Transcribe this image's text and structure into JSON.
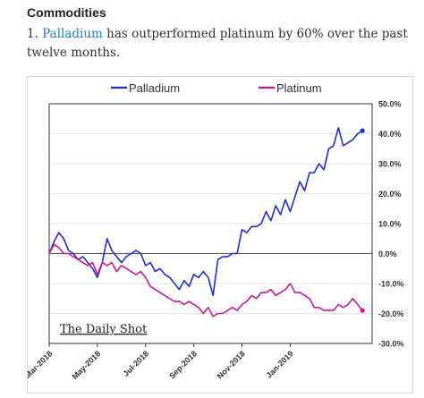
{
  "header": {
    "section_title": "Commodities",
    "caption_number": "1.",
    "caption_link": "Palladium",
    "caption_rest": "has outperformed platinum by 60% over the past twelve months."
  },
  "watermark": "The Daily Shot",
  "colors": {
    "palladium": "#1f2fd6",
    "platinum": "#cc1a96",
    "grid": "#e6e6e6",
    "link": "#2a7bd6"
  },
  "chart_data": {
    "type": "line",
    "ylim": [
      -30,
      50
    ],
    "y_ticks": [
      "50.0%",
      "40.0%",
      "30.0%",
      "20.0%",
      "10.0%",
      "0.0%",
      "-10.0%",
      "-20.0%",
      "-30.0%"
    ],
    "x_tick_labels": [
      "Mar-2018",
      "May-2018",
      "Jul-2018",
      "Sep-2018",
      "Nov-2018",
      "Jan-2019"
    ],
    "legend": [
      "Palladium",
      "Platinum"
    ],
    "legend_position": "top",
    "grid": true,
    "x_unit": "months since Mar-2018",
    "series": [
      {
        "name": "Palladium",
        "values": [
          [
            0,
            0
          ],
          [
            0.2,
            4
          ],
          [
            0.4,
            7
          ],
          [
            0.6,
            5
          ],
          [
            0.8,
            1
          ],
          [
            1.0,
            0
          ],
          [
            1.2,
            -2
          ],
          [
            1.4,
            -1
          ],
          [
            1.6,
            -3
          ],
          [
            1.8,
            -5
          ],
          [
            2.0,
            -8
          ],
          [
            2.2,
            -3
          ],
          [
            2.4,
            5
          ],
          [
            2.6,
            1
          ],
          [
            2.8,
            -1
          ],
          [
            3.0,
            -3
          ],
          [
            3.2,
            -1
          ],
          [
            3.4,
            0
          ],
          [
            3.6,
            1
          ],
          [
            3.8,
            0
          ],
          [
            4.0,
            -4
          ],
          [
            4.2,
            -3
          ],
          [
            4.4,
            -6
          ],
          [
            4.6,
            -5
          ],
          [
            4.8,
            -7
          ],
          [
            5.0,
            -8
          ],
          [
            5.2,
            -10
          ],
          [
            5.4,
            -12
          ],
          [
            5.6,
            -9
          ],
          [
            5.8,
            -11
          ],
          [
            6.0,
            -7
          ],
          [
            6.2,
            -8
          ],
          [
            6.4,
            -6
          ],
          [
            6.6,
            -8
          ],
          [
            6.8,
            -14
          ],
          [
            7.0,
            -2
          ],
          [
            7.2,
            -1
          ],
          [
            7.4,
            -1
          ],
          [
            7.6,
            0
          ],
          [
            7.8,
            0
          ],
          [
            8.0,
            8
          ],
          [
            8.2,
            7
          ],
          [
            8.4,
            9
          ],
          [
            8.6,
            9
          ],
          [
            8.8,
            10
          ],
          [
            9.0,
            14
          ],
          [
            9.2,
            11
          ],
          [
            9.4,
            16
          ],
          [
            9.6,
            13
          ],
          [
            9.8,
            18
          ],
          [
            10.0,
            14
          ],
          [
            10.2,
            19
          ],
          [
            10.4,
            24
          ],
          [
            10.6,
            21
          ],
          [
            10.8,
            27
          ],
          [
            11.0,
            27
          ],
          [
            11.2,
            30
          ],
          [
            11.4,
            28
          ],
          [
            11.6,
            35
          ],
          [
            11.8,
            36
          ],
          [
            12.0,
            42
          ],
          [
            12.2,
            36
          ],
          [
            12.4,
            37
          ],
          [
            12.6,
            38
          ],
          [
            12.8,
            40
          ],
          [
            13.0,
            41
          ]
        ]
      },
      {
        "name": "Platinum",
        "values": [
          [
            0,
            0
          ],
          [
            0.2,
            3
          ],
          [
            0.4,
            2
          ],
          [
            0.6,
            0
          ],
          [
            0.8,
            0
          ],
          [
            1.0,
            -1
          ],
          [
            1.2,
            -2
          ],
          [
            1.4,
            -3
          ],
          [
            1.6,
            -4
          ],
          [
            1.8,
            -3
          ],
          [
            2.0,
            -7
          ],
          [
            2.2,
            -3
          ],
          [
            2.4,
            -4
          ],
          [
            2.6,
            -3
          ],
          [
            2.8,
            -6
          ],
          [
            3.0,
            -4
          ],
          [
            3.2,
            -5
          ],
          [
            3.4,
            -6
          ],
          [
            3.6,
            -7
          ],
          [
            3.8,
            -6
          ],
          [
            4.0,
            -8
          ],
          [
            4.2,
            -11
          ],
          [
            4.4,
            -12
          ],
          [
            4.6,
            -13
          ],
          [
            4.8,
            -14
          ],
          [
            5.0,
            -15
          ],
          [
            5.2,
            -16
          ],
          [
            5.4,
            -16
          ],
          [
            5.6,
            -17
          ],
          [
            5.8,
            -16
          ],
          [
            6.0,
            -17
          ],
          [
            6.2,
            -18
          ],
          [
            6.4,
            -20
          ],
          [
            6.6,
            -18
          ],
          [
            6.8,
            -21
          ],
          [
            7.0,
            -20
          ],
          [
            7.2,
            -20
          ],
          [
            7.4,
            -19
          ],
          [
            7.6,
            -18
          ],
          [
            7.8,
            -19
          ],
          [
            8.0,
            -17
          ],
          [
            8.2,
            -16
          ],
          [
            8.4,
            -14
          ],
          [
            8.6,
            -15
          ],
          [
            8.8,
            -13
          ],
          [
            9.0,
            -13
          ],
          [
            9.2,
            -12
          ],
          [
            9.4,
            -14
          ],
          [
            9.6,
            -13
          ],
          [
            9.8,
            -12
          ],
          [
            10.0,
            -10
          ],
          [
            10.2,
            -13
          ],
          [
            10.4,
            -13
          ],
          [
            10.6,
            -14
          ],
          [
            10.8,
            -15
          ],
          [
            11.0,
            -18
          ],
          [
            11.2,
            -18
          ],
          [
            11.4,
            -19
          ],
          [
            11.6,
            -19
          ],
          [
            11.8,
            -19
          ],
          [
            12.0,
            -17
          ],
          [
            12.2,
            -18
          ],
          [
            12.4,
            -17
          ],
          [
            12.6,
            -15
          ],
          [
            12.8,
            -17
          ],
          [
            13.0,
            -19
          ]
        ]
      }
    ]
  }
}
